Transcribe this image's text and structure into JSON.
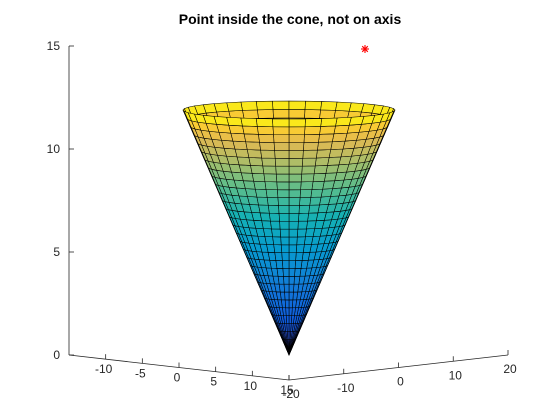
{
  "chart_data": {
    "type": "surface3d",
    "title": "Point inside the cone, not on axis",
    "surface": {
      "shape": "cone",
      "apex": [
        0,
        0,
        0
      ],
      "height": 12,
      "radius_at_top": 10,
      "colormap": "parula",
      "radial_segments": 40,
      "height_segments": 30
    },
    "point": {
      "marker": "*",
      "color": "#ff0000"
    },
    "axes": {
      "x": {
        "range": [
          -15,
          15
        ],
        "ticks": [
          -10,
          -5,
          0,
          5,
          10,
          15
        ],
        "tick_labels": [
          "-10",
          "-5",
          "0",
          "5",
          "10",
          "15"
        ]
      },
      "y": {
        "range": [
          -20,
          20
        ],
        "ticks": [
          -20,
          -10,
          0,
          10,
          20
        ],
        "tick_labels": [
          "-20",
          "-10",
          "0",
          "10",
          "20"
        ]
      },
      "z": {
        "range": [
          0,
          15
        ],
        "ticks": [
          0,
          5,
          10,
          15
        ],
        "tick_labels": [
          "0",
          "5",
          "10",
          "15"
        ]
      }
    },
    "grid": false,
    "legend": "none"
  }
}
